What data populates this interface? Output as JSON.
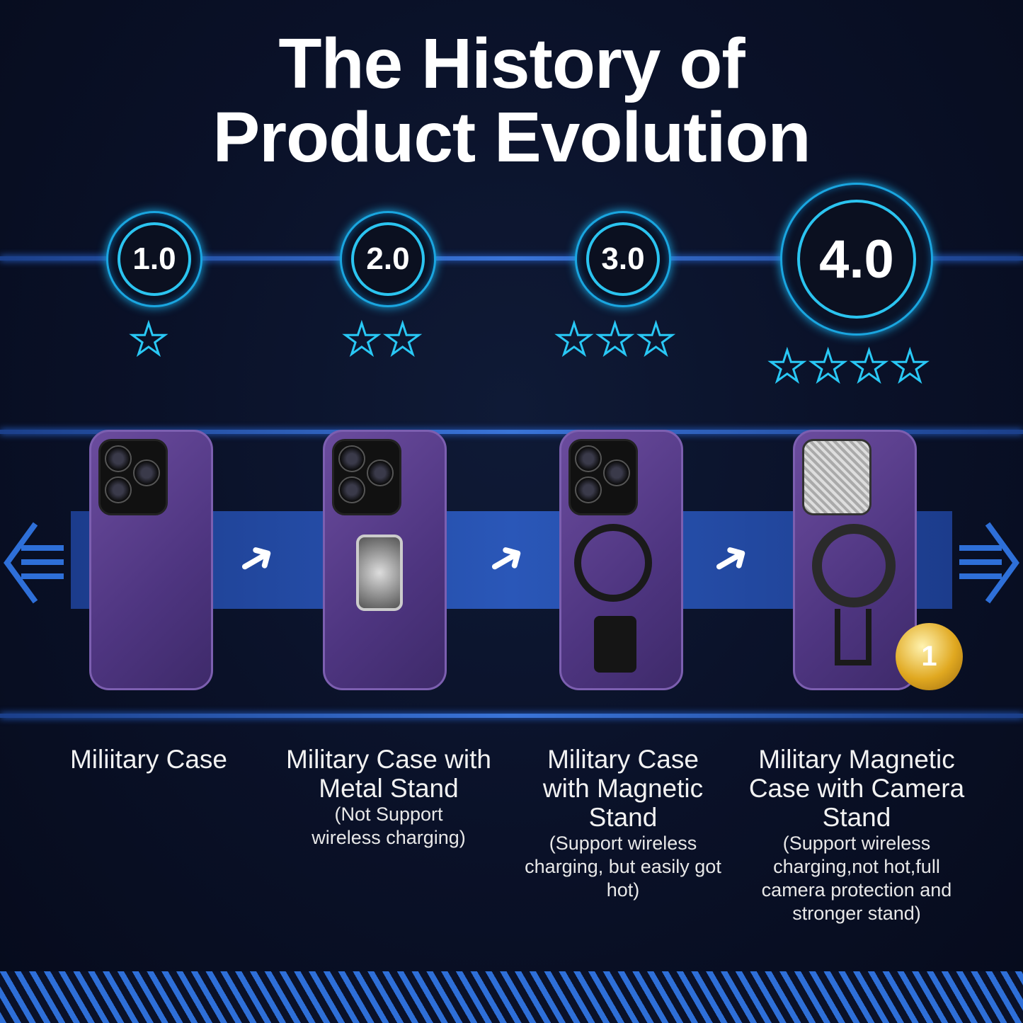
{
  "title": {
    "line1": "The History of",
    "line2": "Product Evolution"
  },
  "versions": [
    {
      "label": "1.0",
      "stars": 1,
      "name": "Miliitary Case",
      "note": ""
    },
    {
      "label": "2.0",
      "stars": 2,
      "name": "Military Case with Metal Stand",
      "note": "(Not Support wireless charging)"
    },
    {
      "label": "3.0",
      "stars": 3,
      "name": "Military Case with Magnetic Stand",
      "note": "(Support wireless charging, but easily got hot)"
    },
    {
      "label": "4.0",
      "stars": 4,
      "name": "Military Magnetic Case with Camera Stand",
      "note": "(Support wireless charging,not hot,full camera protection and stronger stand)"
    }
  ],
  "medal_text": "1",
  "colors": {
    "accent": "#29c8f5",
    "band": "#2a57b8",
    "case": "#5a3e8c"
  }
}
